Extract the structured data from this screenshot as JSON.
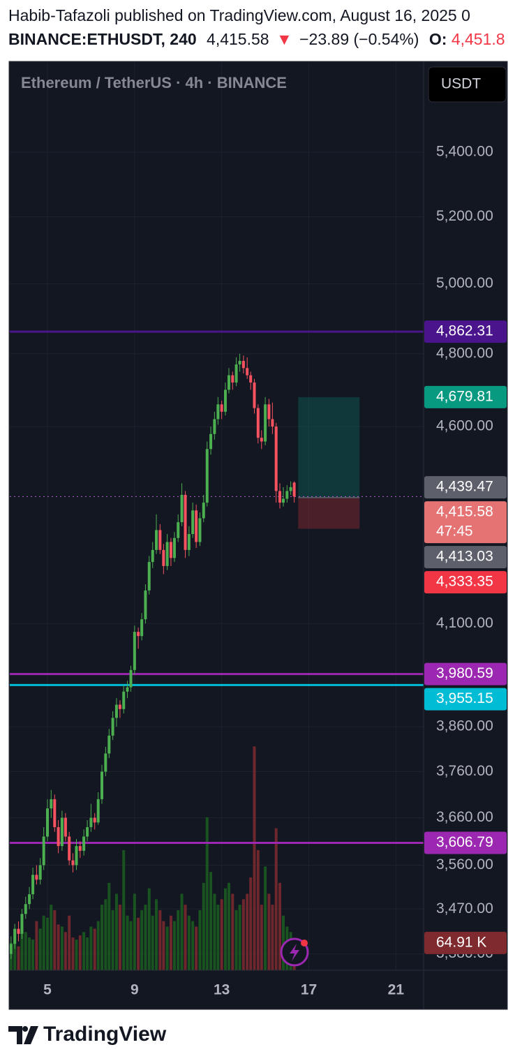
{
  "header": {
    "attribution": "Habib-Tafazoli published on TradingView.com, August 16, 2025 0",
    "symbol": "BINANCE:ETHUSDT, 240",
    "last": "4,415.58",
    "arrow": "▼",
    "change": "−23.89 (−0.54%)",
    "open_key": "O:",
    "open_value": "4,451.8"
  },
  "chart_data": {
    "type": "candlestick",
    "title": "Ethereum / TetherUS · 4h · BINANCE",
    "currency": "USDT",
    "log_scale": true,
    "grid": true,
    "up_color": "#4caf50",
    "down_color": "#f7525f",
    "xlim": [
      3.27,
      22.27
    ],
    "xticks": [
      5,
      9,
      13,
      17,
      21
    ],
    "ylim": [
      3348,
      5694
    ],
    "yticks": [
      {
        "value": 5400,
        "label": "5,400.00"
      },
      {
        "value": 5200,
        "label": "5,200.00"
      },
      {
        "value": 5000,
        "label": "5,000.00"
      },
      {
        "value": 4800,
        "label": "4,800.00"
      },
      {
        "value": 4600,
        "label": "4,600.00"
      },
      {
        "value": 4100,
        "label": "4,100.00"
      },
      {
        "value": 3860,
        "label": "3,860.00"
      },
      {
        "value": 3760,
        "label": "3,760.00"
      },
      {
        "value": 3660,
        "label": "3,660.00"
      },
      {
        "value": 3560,
        "label": "3,560.00"
      },
      {
        "value": 3470,
        "label": "3,470.00"
      },
      {
        "value": 3380,
        "label": "3,380.00"
      }
    ],
    "x": [
      3.33,
      3.5,
      3.67,
      3.83,
      4,
      4.17,
      4.33,
      4.5,
      4.67,
      4.83,
      5,
      5.17,
      5.33,
      5.5,
      5.67,
      5.83,
      6,
      6.17,
      6.33,
      6.5,
      6.67,
      6.83,
      7,
      7.17,
      7.33,
      7.5,
      7.67,
      7.83,
      8,
      8.17,
      8.33,
      8.5,
      8.67,
      8.83,
      9,
      9.17,
      9.33,
      9.5,
      9.67,
      9.83,
      10,
      10.17,
      10.33,
      10.5,
      10.67,
      10.83,
      11,
      11.17,
      11.33,
      11.5,
      11.67,
      11.83,
      12,
      12.17,
      12.33,
      12.5,
      12.67,
      12.83,
      13,
      13.17,
      13.33,
      13.5,
      13.67,
      13.83,
      14,
      14.17,
      14.33,
      14.5,
      14.67,
      14.83,
      15,
      15.17,
      15.33,
      15.5,
      15.67,
      15.83,
      16,
      16.17,
      16.33
    ],
    "candles": [
      [
        3380,
        3415,
        3370,
        3400
      ],
      [
        3400,
        3440,
        3390,
        3430
      ],
      [
        3430,
        3445,
        3405,
        3420
      ],
      [
        3420,
        3470,
        3410,
        3460
      ],
      [
        3460,
        3495,
        3450,
        3480
      ],
      [
        3480,
        3515,
        3470,
        3500
      ],
      [
        3500,
        3555,
        3490,
        3540
      ],
      [
        3540,
        3560,
        3520,
        3530
      ],
      [
        3530,
        3575,
        3520,
        3560
      ],
      [
        3560,
        3640,
        3550,
        3620
      ],
      [
        3620,
        3700,
        3610,
        3680
      ],
      [
        3680,
        3720,
        3660,
        3700
      ],
      [
        3700,
        3710,
        3630,
        3640
      ],
      [
        3640,
        3655,
        3585,
        3600
      ],
      [
        3600,
        3675,
        3590,
        3660
      ],
      [
        3660,
        3670,
        3610,
        3620
      ],
      [
        3620,
        3630,
        3560,
        3570
      ],
      [
        3570,
        3585,
        3545,
        3560
      ],
      [
        3560,
        3615,
        3550,
        3600
      ],
      [
        3600,
        3610,
        3575,
        3590
      ],
      [
        3590,
        3635,
        3580,
        3620
      ],
      [
        3620,
        3655,
        3610,
        3640
      ],
      [
        3640,
        3690,
        3630,
        3660
      ],
      [
        3660,
        3670,
        3635,
        3650
      ],
      [
        3650,
        3715,
        3645,
        3700
      ],
      [
        3700,
        3775,
        3690,
        3760
      ],
      [
        3760,
        3815,
        3750,
        3800
      ],
      [
        3800,
        3855,
        3790,
        3840
      ],
      [
        3840,
        3895,
        3830,
        3880
      ],
      [
        3880,
        3925,
        3860,
        3910
      ],
      [
        3910,
        3920,
        3880,
        3900
      ],
      [
        3900,
        3955,
        3890,
        3940
      ],
      [
        3940,
        3965,
        3925,
        3950
      ],
      [
        3950,
        4000,
        3940,
        3990
      ],
      [
        3990,
        4095,
        3980,
        4080
      ],
      [
        4080,
        4090,
        4040,
        4070
      ],
      [
        4070,
        4125,
        4060,
        4110
      ],
      [
        4110,
        4195,
        4100,
        4180
      ],
      [
        4180,
        4265,
        4170,
        4250
      ],
      [
        4250,
        4300,
        4235,
        4280
      ],
      [
        4280,
        4370,
        4270,
        4330
      ],
      [
        4330,
        4345,
        4270,
        4280
      ],
      [
        4280,
        4295,
        4220,
        4240
      ],
      [
        4240,
        4320,
        4230,
        4300
      ],
      [
        4300,
        4310,
        4240,
        4260
      ],
      [
        4260,
        4325,
        4250,
        4310
      ],
      [
        4310,
        4370,
        4300,
        4350
      ],
      [
        4350,
        4450,
        4340,
        4420
      ],
      [
        4420,
        4430,
        4260,
        4280
      ],
      [
        4280,
        4340,
        4265,
        4320
      ],
      [
        4320,
        4400,
        4310,
        4380
      ],
      [
        4380,
        4395,
        4285,
        4300
      ],
      [
        4300,
        4375,
        4290,
        4360
      ],
      [
        4360,
        4420,
        4350,
        4400
      ],
      [
        4400,
        4560,
        4390,
        4540
      ],
      [
        4540,
        4600,
        4525,
        4580
      ],
      [
        4580,
        4640,
        4565,
        4620
      ],
      [
        4620,
        4680,
        4605,
        4660
      ],
      [
        4660,
        4670,
        4620,
        4640
      ],
      [
        4640,
        4720,
        4630,
        4700
      ],
      [
        4700,
        4760,
        4690,
        4740
      ],
      [
        4740,
        4750,
        4700,
        4720
      ],
      [
        4720,
        4790,
        4710,
        4770
      ],
      [
        4770,
        4800,
        4750,
        4780
      ],
      [
        4780,
        4795,
        4745,
        4760
      ],
      [
        4760,
        4790,
        4730,
        4740
      ],
      [
        4740,
        4750,
        4700,
        4720
      ],
      [
        4720,
        4730,
        4635,
        4650
      ],
      [
        4650,
        4660,
        4555,
        4570
      ],
      [
        4570,
        4590,
        4540,
        4560
      ],
      [
        4560,
        4680,
        4550,
        4660
      ],
      [
        4660,
        4675,
        4600,
        4620
      ],
      [
        4620,
        4665,
        4580,
        4600
      ],
      [
        4600,
        4610,
        4400,
        4430
      ],
      [
        4430,
        4450,
        4385,
        4400
      ],
      [
        4400,
        4440,
        4390,
        4410
      ],
      [
        4410,
        4445,
        4400,
        4430
      ],
      [
        4430,
        4455,
        4420,
        4440
      ],
      [
        4451.8,
        4455,
        4400,
        4415.58
      ]
    ],
    "volume": [
      65,
      78,
      57,
      104,
      91,
      78,
      73,
      117,
      99,
      130,
      125,
      156,
      143,
      109,
      104,
      91,
      130,
      78,
      73,
      83,
      91,
      78,
      104,
      99,
      117,
      156,
      169,
      208,
      143,
      182,
      156,
      286,
      130,
      117,
      182,
      125,
      143,
      156,
      195,
      130,
      169,
      143,
      117,
      104,
      130,
      117,
      143,
      182,
      156,
      130,
      117,
      104,
      143,
      208,
      364,
      234,
      182,
      156,
      169,
      195,
      208,
      182,
      143,
      156,
      169,
      182,
      221,
      533,
      286,
      156,
      247,
      182,
      156,
      338,
      208,
      130,
      104,
      91,
      64.91
    ],
    "volume_ylim": [
      0,
      540
    ],
    "volume_label": "64.91 K",
    "levels": [
      {
        "value": 4862.31,
        "label": "4,862.31",
        "color": "#4a148c"
      },
      {
        "value": 3980.59,
        "label": "3,980.59",
        "color": "#9c27b0"
      },
      {
        "value": 3955.15,
        "label": "3,955.15",
        "color": "#00bcd4"
      },
      {
        "value": 3606.79,
        "label": "3,606.79",
        "color": "#9c27b0"
      }
    ],
    "position": {
      "x": [
        16.51,
        19.33
      ],
      "target": {
        "value": 4679.81,
        "label": "4,679.81"
      },
      "entry": {
        "value": 4413.03,
        "label": "4,413.03"
      },
      "stop": {
        "value": 4333.35,
        "label": "4,333.35"
      }
    },
    "price_labels": [
      {
        "value": 4439.47,
        "label": "4,439.47",
        "color": "#5d606b"
      },
      {
        "value": 4415.58,
        "label": "4,415.58",
        "color": "#e57373",
        "countdown": "47:45"
      }
    ]
  }
}
